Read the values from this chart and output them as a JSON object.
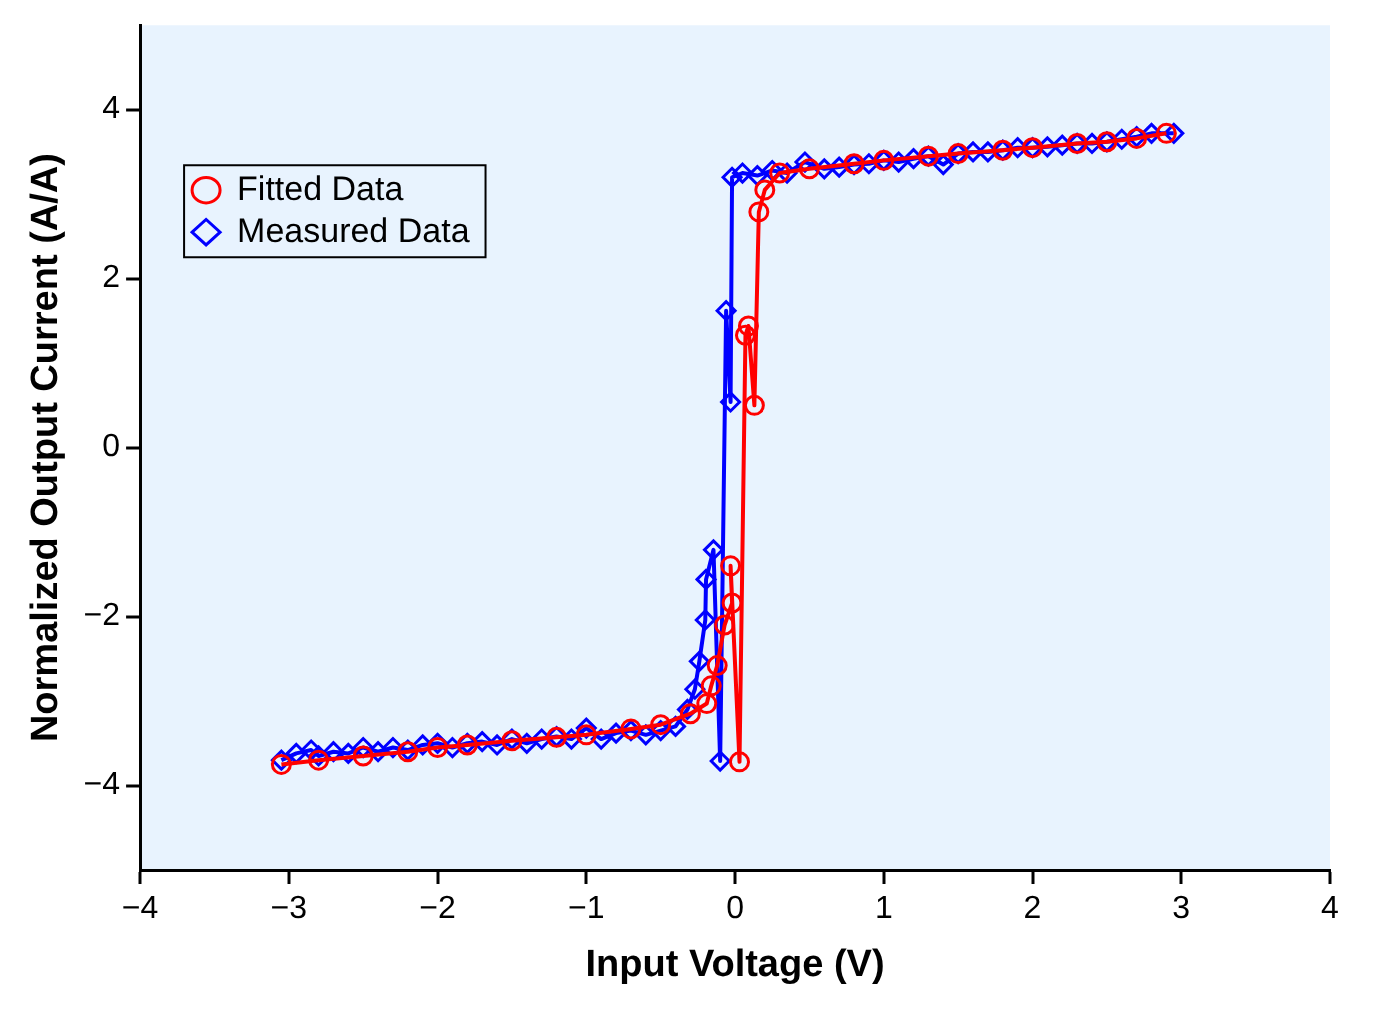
{
  "chart_data": {
    "type": "line",
    "xlabel": "Input Voltage (V)",
    "ylabel": "Normalized Output Current (A/A)",
    "xlim": [
      -4,
      4
    ],
    "xticks": [
      {
        "value": -4,
        "label": "−4"
      },
      {
        "value": -3,
        "label": "−3"
      },
      {
        "value": -2,
        "label": "−2"
      },
      {
        "value": -1,
        "label": "−1"
      },
      0,
      1,
      2,
      3,
      4
    ],
    "ylim": [
      -5,
      5
    ],
    "yticks": [
      {
        "value": -4,
        "label": "−4"
      },
      {
        "value": -2,
        "label": "−2"
      },
      0,
      2,
      4
    ],
    "grid": false,
    "legend": "top left",
    "series": [
      {
        "name": "Fitted Data",
        "color": "#ff0000",
        "marker": "circle",
        "x": [
          -3.05,
          -2.8,
          -2.5,
          -2.2,
          -2.0,
          -1.8,
          -1.5,
          -1.2,
          -1.0,
          -0.7,
          -0.5,
          -0.3,
          -0.19,
          -0.16,
          -0.12,
          -0.07,
          -0.02,
          -0.03,
          0.03,
          0.07,
          0.09,
          0.13,
          0.16,
          0.2,
          0.3,
          0.5,
          0.8,
          1.0,
          1.3,
          1.5,
          1.8,
          2.0,
          2.3,
          2.5,
          2.7,
          2.9
        ],
        "values": [
          -3.75,
          -3.7,
          -3.65,
          -3.6,
          -3.55,
          -3.52,
          -3.47,
          -3.43,
          -3.4,
          -3.33,
          -3.28,
          -3.15,
          -3.03,
          -2.82,
          -2.58,
          -2.1,
          -1.84,
          -1.4,
          -3.72,
          1.33,
          1.44,
          0.5,
          2.79,
          3.05,
          3.25,
          3.3,
          3.36,
          3.4,
          3.45,
          3.48,
          3.52,
          3.55,
          3.6,
          3.62,
          3.66,
          3.72
        ]
      },
      {
        "name": "Measured Data",
        "color": "#0000ff",
        "marker": "diamond",
        "x": [
          -3.05,
          -2.95,
          -2.85,
          -2.8,
          -2.7,
          -2.6,
          -2.5,
          -2.4,
          -2.3,
          -2.2,
          -2.1,
          -2.0,
          -1.9,
          -1.8,
          -1.7,
          -1.6,
          -1.5,
          -1.4,
          -1.3,
          -1.2,
          -1.1,
          -1.0,
          -0.9,
          -0.8,
          -0.7,
          -0.6,
          -0.5,
          -0.4,
          -0.32,
          -0.27,
          -0.24,
          -0.2,
          -0.195,
          -0.145,
          -0.1,
          -0.06,
          -0.03,
          -0.02,
          0.05,
          0.15,
          0.25,
          0.35,
          0.47,
          0.6,
          0.7,
          0.8,
          0.9,
          1.0,
          1.1,
          1.2,
          1.3,
          1.4,
          1.5,
          1.6,
          1.7,
          1.8,
          1.9,
          2.0,
          2.1,
          2.2,
          2.3,
          2.4,
          2.5,
          2.6,
          2.7,
          2.8,
          2.95
        ],
        "values": [
          -3.7,
          -3.62,
          -3.58,
          -3.65,
          -3.6,
          -3.62,
          -3.55,
          -3.6,
          -3.55,
          -3.58,
          -3.52,
          -3.5,
          -3.55,
          -3.5,
          -3.48,
          -3.52,
          -3.45,
          -3.5,
          -3.45,
          -3.42,
          -3.45,
          -3.32,
          -3.45,
          -3.38,
          -3.35,
          -3.4,
          -3.35,
          -3.3,
          -3.1,
          -2.86,
          -2.53,
          -2.04,
          -1.56,
          -1.21,
          -3.71,
          1.62,
          0.54,
          3.2,
          3.25,
          3.22,
          3.28,
          3.25,
          3.38,
          3.3,
          3.32,
          3.35,
          3.36,
          3.4,
          3.38,
          3.42,
          3.45,
          3.35,
          3.48,
          3.5,
          3.5,
          3.52,
          3.55,
          3.55,
          3.56,
          3.58,
          3.6,
          3.6,
          3.62,
          3.65,
          3.68,
          3.72,
          3.72
        ]
      }
    ]
  }
}
